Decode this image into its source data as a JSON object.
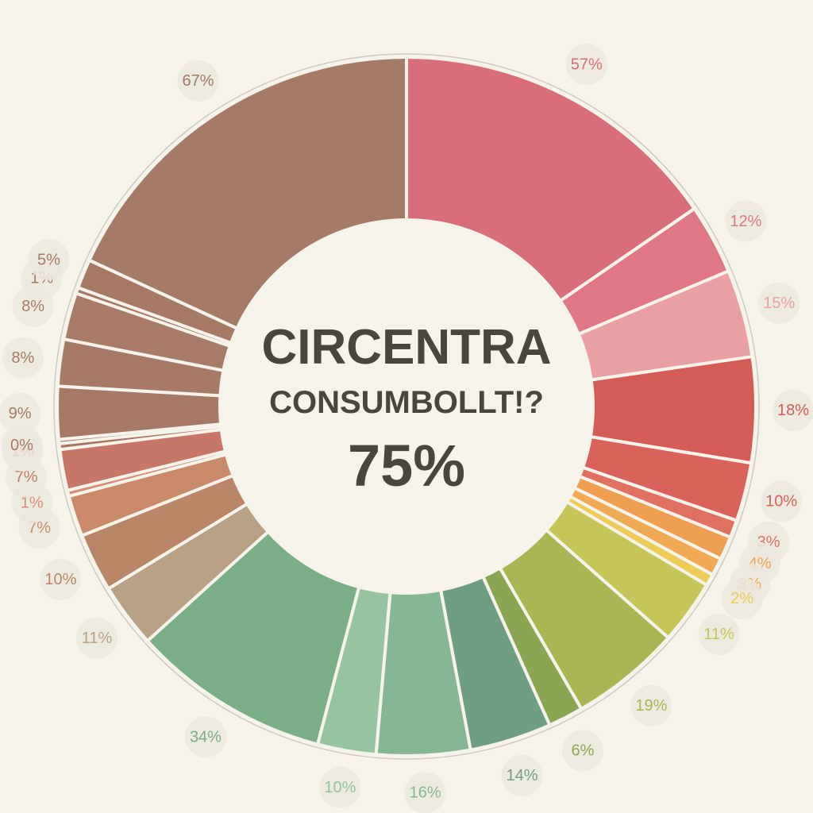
{
  "chart_data": {
    "type": "pie",
    "variant": "donut",
    "title": "CIRCENTRA",
    "subtitle": "CONSUMBOLLT!?",
    "center_value": "75%",
    "legend": "none",
    "slices": [
      {
        "label": "57%",
        "value": 57,
        "color": "#d86e7a"
      },
      {
        "label": "12%",
        "value": 12,
        "color": "#e07785"
      },
      {
        "label": "15%",
        "value": 15,
        "color": "#e9a0a3"
      },
      {
        "label": "18%",
        "value": 18,
        "color": "#d55b56"
      },
      {
        "label": "10%",
        "value": 10,
        "color": "#d9625a"
      },
      {
        "label": "3%",
        "value": 3,
        "color": "#e0705f"
      },
      {
        "label": "4%",
        "value": 4,
        "color": "#ef9f52"
      },
      {
        "label": "3%",
        "value": 3,
        "color": "#f0a955"
      },
      {
        "label": "2%",
        "value": 2,
        "color": "#eecb55"
      },
      {
        "label": "11%",
        "value": 11,
        "color": "#c5c55a"
      },
      {
        "label": "19%",
        "value": 19,
        "color": "#a9b653"
      },
      {
        "label": "6%",
        "value": 6,
        "color": "#8aa652"
      },
      {
        "label": "14%",
        "value": 14,
        "color": "#6e9f82"
      },
      {
        "label": "16%",
        "value": 16,
        "color": "#86b794"
      },
      {
        "label": "10%",
        "value": 10,
        "color": "#96c4a0"
      },
      {
        "label": "34%",
        "value": 34,
        "color": "#79ae87"
      },
      {
        "label": "11%",
        "value": 11,
        "color": "#b9a186"
      },
      {
        "label": "10%",
        "value": 10,
        "color": "#b98767"
      },
      {
        "label": "7%",
        "value": 7,
        "color": "#c98a6a"
      },
      {
        "label": "1%",
        "value": 1,
        "color": "#d98c78"
      },
      {
        "label": "7%",
        "value": 7,
        "color": "#c77768"
      },
      {
        "label": "1%",
        "value": 1,
        "color": "#a57561"
      },
      {
        "label": "0%",
        "value": 0,
        "color": "#a87a62"
      },
      {
        "label": "9%",
        "value": 9,
        "color": "#a57965"
      },
      {
        "label": "8%",
        "value": 8,
        "color": "#a67a66"
      },
      {
        "label": "8%",
        "value": 8,
        "color": "#a87c68"
      },
      {
        "label": "1%",
        "value": 1,
        "color": "#a67865"
      },
      {
        "label": "5%",
        "value": 5,
        "color": "#a77a66"
      },
      {
        "label": "67%",
        "value": 67,
        "color": "#a57a67"
      }
    ]
  }
}
